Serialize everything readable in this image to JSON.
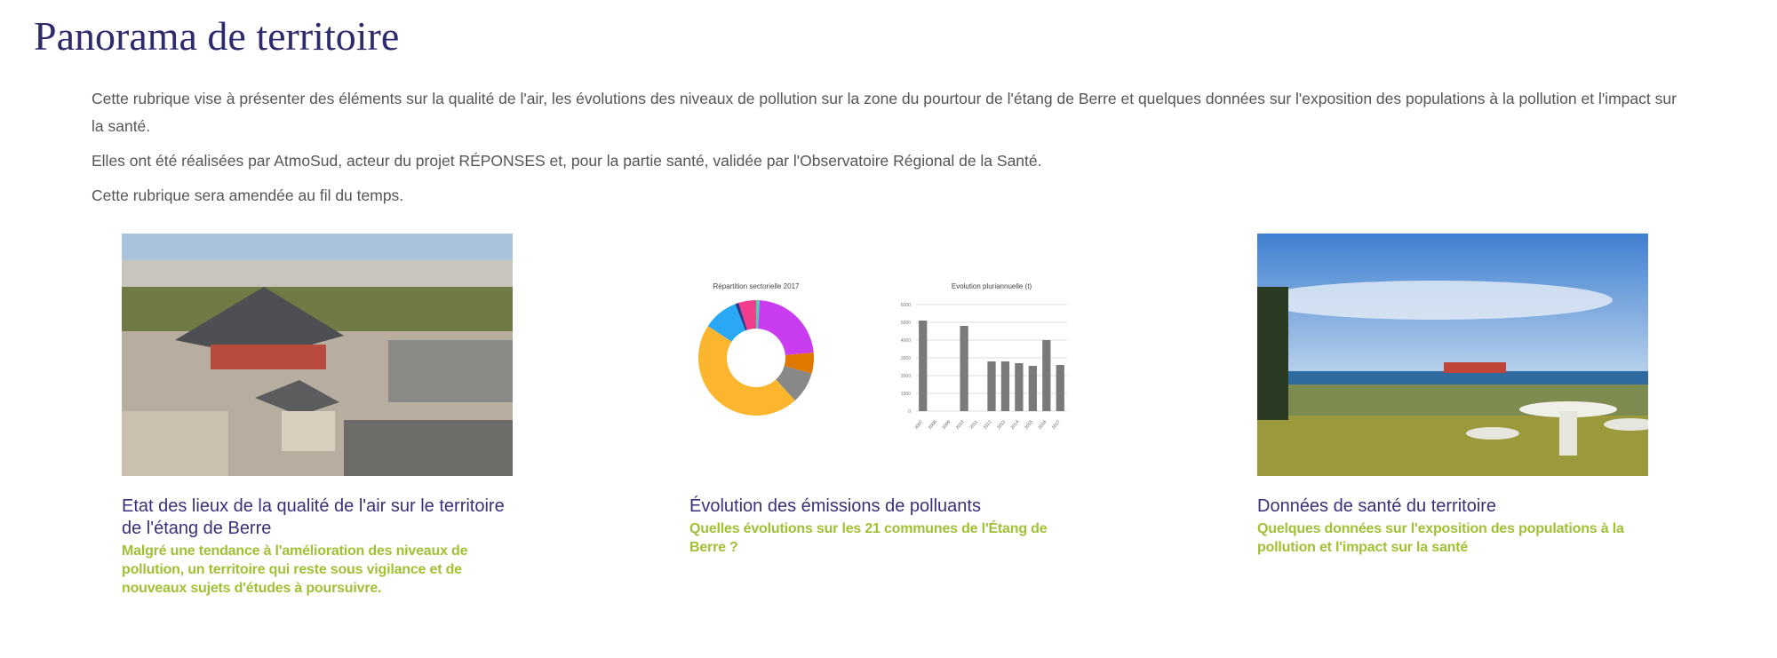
{
  "page_title": "Panorama de territoire",
  "intro": [
    "Cette rubrique vise à présenter des éléments sur la qualité de l'air, les évolutions des niveaux de pollution sur la zone du pourtour de l'étang de Berre et quelques données sur l'exposition des populations à la pollution et l'impact sur la santé.",
    "Elles ont été réalisées par AtmoSud, acteur du projet RÉPONSES et, pour la partie santé, validée par l'Observatoire Régional de la Santé.",
    "Cette rubrique sera amendée au fil du temps."
  ],
  "cards": [
    {
      "title": "Etat des lieux de la qualité de l'air sur le territoire de l'étang de Berre",
      "subtitle": "Malgré une tendance à l'amélioration des niveaux de pollution, un territoire qui reste sous vigilance et de nouveaux sujets d'études à poursuivre."
    },
    {
      "title": "Évolution des émissions de polluants",
      "subtitle": "Quelles évolutions sur les 21 communes de l'Étang de Berre ?"
    },
    {
      "title": "Données de santé du territoire",
      "subtitle": "Quelques données sur l'exposition des populations à la pollution et l'impact sur la santé"
    }
  ],
  "chart_data": [
    {
      "type": "pie",
      "title": "Répartition sectorielle 2017",
      "values": [
        1,
        23,
        6,
        9,
        47,
        10,
        1,
        5
      ],
      "colors": [
        "#3ddbb0",
        "#c93cf0",
        "#e07800",
        "#888888",
        "#fbb52e",
        "#2aa8f5",
        "#2a3a8a",
        "#f23c8c"
      ]
    },
    {
      "type": "bar",
      "title": "Evolution pluriannuelle (t)",
      "categories": [
        "2007",
        "2008",
        "2009",
        "2010",
        "2011",
        "2012",
        "2013",
        "2014",
        "2015",
        "2016",
        "2017"
      ],
      "values": [
        5100,
        0,
        0,
        4800,
        0,
        2800,
        2800,
        2700,
        2550,
        4000,
        2600
      ],
      "ylim": [
        0,
        6000
      ],
      "yticks": [
        0,
        1000,
        2000,
        3000,
        4000,
        5000,
        6000
      ],
      "grid": true,
      "color": "#7a7a7a"
    }
  ],
  "colors": {
    "title": "#2d2a6e",
    "card_title": "#3a2f7a",
    "subtitle": "#a2c035"
  }
}
